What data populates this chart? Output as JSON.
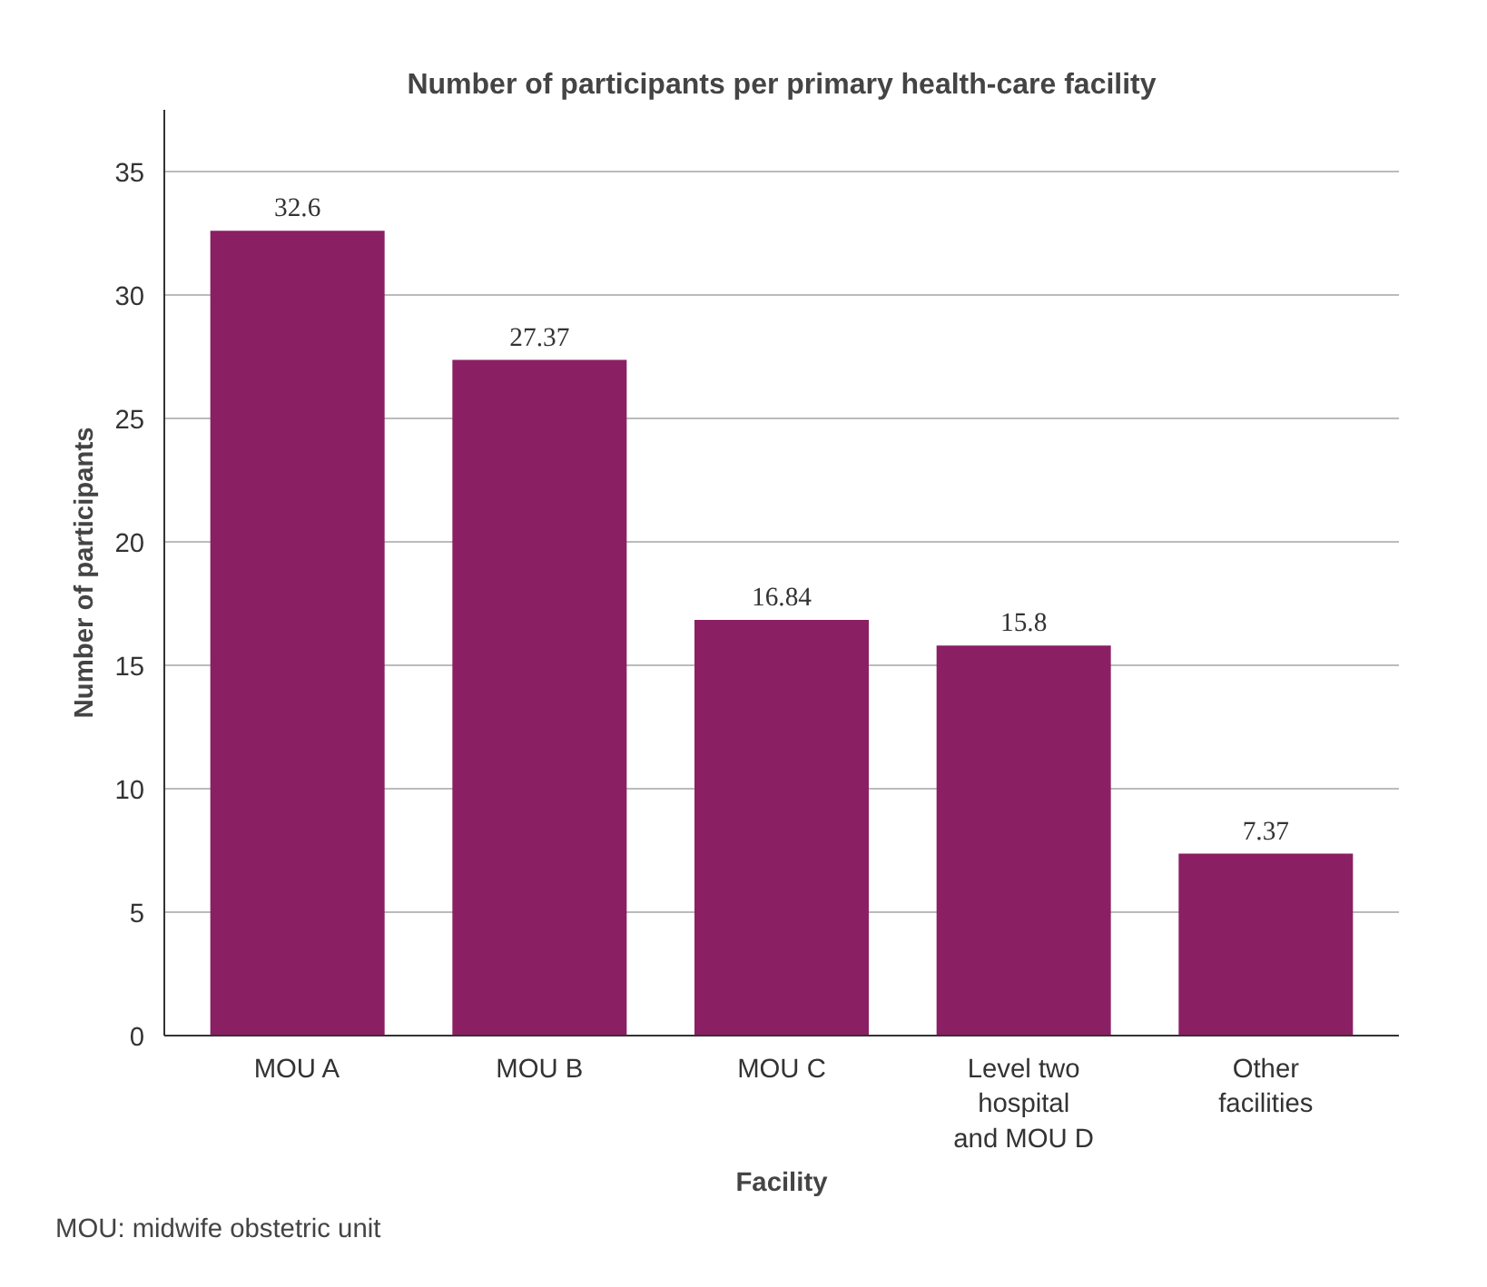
{
  "chart_data": {
    "type": "bar",
    "title": "Number of participants per primary health-care facility",
    "xlabel": "Facility",
    "ylabel": "Number of participants",
    "categories": [
      "MOU A",
      "MOU B",
      "MOU C",
      "Level two hospital and MOU D",
      "Other facilities"
    ],
    "values": [
      32.6,
      27.37,
      16.84,
      15.8,
      7.37
    ],
    "color": "#8b1f63",
    "ylim": [
      0,
      37.5
    ],
    "yticks": [
      0,
      5,
      10,
      15,
      20,
      25,
      30,
      35
    ],
    "grid": "y",
    "data_labels": true,
    "annotations": [
      "MOU: midwife obstetric unit"
    ]
  }
}
